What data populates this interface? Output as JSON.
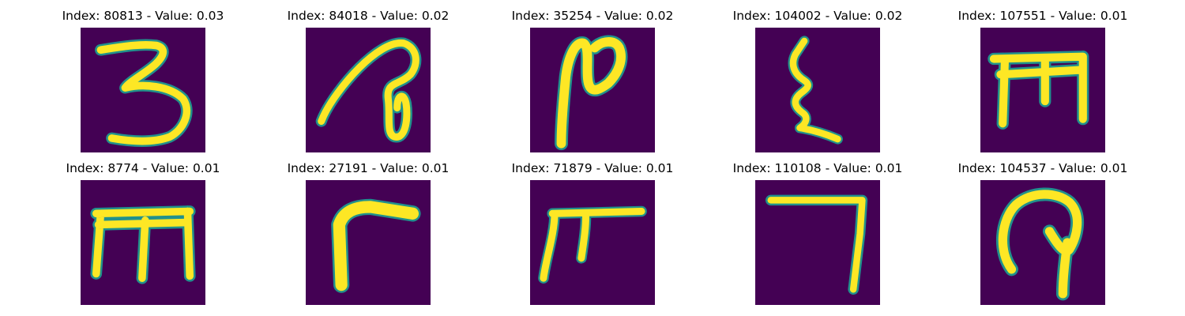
{
  "colors": {
    "background": "#440154",
    "mid": "#21918c",
    "stroke": "#fde725"
  },
  "panels": [
    {
      "title": "Index: 80813 - Value: 0.03",
      "glyph": "devanagari-3-like"
    },
    {
      "title": "Index: 84018 - Value: 0.02",
      "glyph": "looped-stroke"
    },
    {
      "title": "Index: 35254 - Value: 0.02",
      "glyph": "n-like-curve"
    },
    {
      "title": "Index: 104002 - Value: 0.02",
      "glyph": "epsilon-like"
    },
    {
      "title": "Index: 107551 - Value: 0.01",
      "glyph": "m-like"
    },
    {
      "title": "Index: 8774 - Value: 0.01",
      "glyph": "m-like-tall"
    },
    {
      "title": "Index: 27191 - Value: 0.01",
      "glyph": "corner-stroke"
    },
    {
      "title": "Index: 71879 - Value: 0.01",
      "glyph": "f-like"
    },
    {
      "title": "Index: 110108 - Value: 0.01",
      "glyph": "reverse-l"
    },
    {
      "title": "Index: 104537 - Value: 0.01",
      "glyph": "looped-hook"
    }
  ]
}
